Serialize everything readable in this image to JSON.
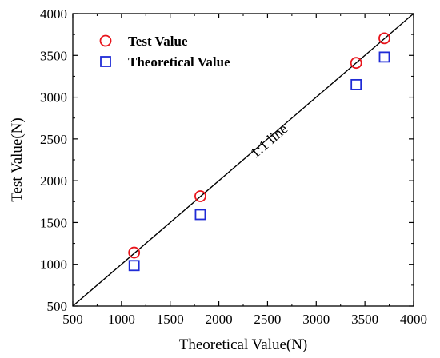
{
  "chart_data": {
    "type": "scatter",
    "title": "",
    "xlabel": "Theoretical Value(N)",
    "ylabel": "Test Value(N)",
    "xlim": [
      500,
      4000
    ],
    "ylim": [
      500,
      4000
    ],
    "x_ticks": [
      500,
      1000,
      1500,
      2000,
      2500,
      3000,
      3500,
      4000
    ],
    "y_ticks": [
      500,
      1000,
      1500,
      2000,
      2500,
      3000,
      3500,
      4000
    ],
    "grid": false,
    "legend_position": "top-left",
    "series": [
      {
        "name": "Test Value",
        "marker": "circle",
        "color": "#e8141b",
        "points": [
          {
            "x": 1130,
            "y": 1140
          },
          {
            "x": 1810,
            "y": 1815
          },
          {
            "x": 3410,
            "y": 3410
          },
          {
            "x": 3700,
            "y": 3705
          }
        ]
      },
      {
        "name": "Theoretical Value",
        "marker": "square",
        "color": "#1f2bd6",
        "points": [
          {
            "x": 1130,
            "y": 985
          },
          {
            "x": 1810,
            "y": 1595
          },
          {
            "x": 3410,
            "y": 3150
          },
          {
            "x": 3700,
            "y": 3480
          }
        ]
      }
    ],
    "reference_line": {
      "label": "1:1 line",
      "from": [
        500,
        500
      ],
      "to": [
        4000,
        4000
      ]
    }
  }
}
